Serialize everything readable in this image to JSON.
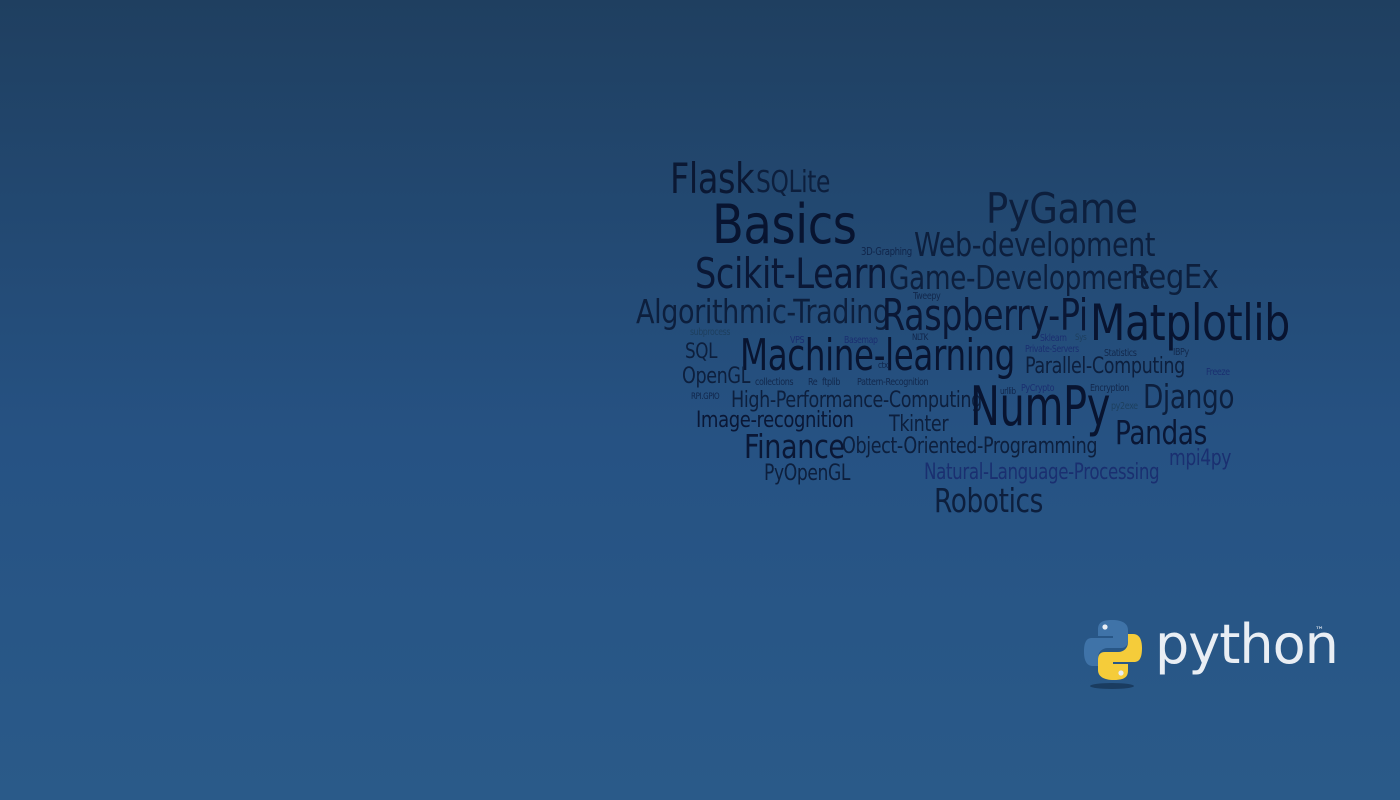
{
  "word_cloud": [
    {
      "text": "Flask",
      "size": 42,
      "color": "#0b1833"
    },
    {
      "text": "SQLite",
      "size": 30,
      "color": "#0d1f3d"
    },
    {
      "text": "Basics",
      "size": 54,
      "color": "#081430"
    },
    {
      "text": "PyGame",
      "size": 42,
      "color": "#0d1f3d"
    },
    {
      "text": "3D-Graphing",
      "size": 11,
      "color": "#10254a"
    },
    {
      "text": "Web-development",
      "size": 33,
      "color": "#0d1f3d"
    },
    {
      "text": "Scikit-Learn",
      "size": 42,
      "color": "#0a1735"
    },
    {
      "text": "Game-Development",
      "size": 33,
      "color": "#0d1f3d"
    },
    {
      "text": "RegEx",
      "size": 33,
      "color": "#0d1f3d"
    },
    {
      "text": "Algorithmic-Trading",
      "size": 33,
      "color": "#0d1f3d"
    },
    {
      "text": "Tweepy",
      "size": 10,
      "color": "#12284c"
    },
    {
      "text": "Raspberry-Pi",
      "size": 44,
      "color": "#0a1735"
    },
    {
      "text": "Matplotlib",
      "size": 50,
      "color": "#081430"
    },
    {
      "text": "subprocess",
      "size": 10,
      "color": "#1d3f5e"
    },
    {
      "text": "VPS",
      "size": 10,
      "color": "#1a2f70"
    },
    {
      "text": "Basemap",
      "size": 10,
      "color": "#1a2f70"
    },
    {
      "text": "NLTK",
      "size": 9,
      "color": "#10254a"
    },
    {
      "text": "Sklearn",
      "size": 10,
      "color": "#1a2f70"
    },
    {
      "text": "Sys",
      "size": 9,
      "color": "#1d3f5e"
    },
    {
      "text": "SQL",
      "size": 21,
      "color": "#0d1f3d"
    },
    {
      "text": "Machine-learning",
      "size": 44,
      "color": "#081430"
    },
    {
      "text": "Private-Servers",
      "size": 10,
      "color": "#1a2f70"
    },
    {
      "text": "Statistics",
      "size": 10,
      "color": "#12284c"
    },
    {
      "text": "IBPy",
      "size": 10,
      "color": "#12284c"
    },
    {
      "text": "OpenGL",
      "size": 22,
      "color": "#0d1f3d"
    },
    {
      "text": "collections",
      "size": 10,
      "color": "#12284c"
    },
    {
      "text": "ctx",
      "size": 9,
      "color": "#10254a"
    },
    {
      "text": "Re",
      "size": 10,
      "color": "#12284c"
    },
    {
      "text": "ftplib",
      "size": 10,
      "color": "#12284c"
    },
    {
      "text": "Pattern-Recognition",
      "size": 10,
      "color": "#12284c"
    },
    {
      "text": "Parallel-Computing",
      "size": 22,
      "color": "#0d1f3d"
    },
    {
      "text": "Freeze",
      "size": 10,
      "color": "#1a2f70"
    },
    {
      "text": "RPI.GPIO",
      "size": 9,
      "color": "#10254a"
    },
    {
      "text": "urllib",
      "size": 9,
      "color": "#10254a"
    },
    {
      "text": "PyCrypto",
      "size": 10,
      "color": "#1a2f70"
    },
    {
      "text": "Encryption",
      "size": 10,
      "color": "#12284c"
    },
    {
      "text": "High-Performance-Computing",
      "size": 22,
      "color": "#0d1f3d"
    },
    {
      "text": "NumPy",
      "size": 54,
      "color": "#081430"
    },
    {
      "text": "py2exe",
      "size": 10,
      "color": "#1d3f5e"
    },
    {
      "text": "Django",
      "size": 33,
      "color": "#0d1f3d"
    },
    {
      "text": "Image-recognition",
      "size": 22,
      "color": "#0a1735"
    },
    {
      "text": "Tkinter",
      "size": 22,
      "color": "#0d1f3d"
    },
    {
      "text": "Pandas",
      "size": 33,
      "color": "#0a1735"
    },
    {
      "text": "Finance",
      "size": 33,
      "color": "#0a1735"
    },
    {
      "text": "Object-Oriented-Programming",
      "size": 22,
      "color": "#0d1f3d"
    },
    {
      "text": "mpi4py",
      "size": 22,
      "color": "#1a2f70"
    },
    {
      "text": "PyOpenGL",
      "size": 22,
      "color": "#0d1f3d"
    },
    {
      "text": "Natural-Language-Processing",
      "size": 22,
      "color": "#1a2f70"
    },
    {
      "text": "Robotics",
      "size": 33,
      "color": "#0d1f3d"
    }
  ],
  "logo": {
    "wordmark": "python",
    "trademark": "™",
    "blue": "#3f73a8",
    "yellow": "#f5cc3a"
  }
}
